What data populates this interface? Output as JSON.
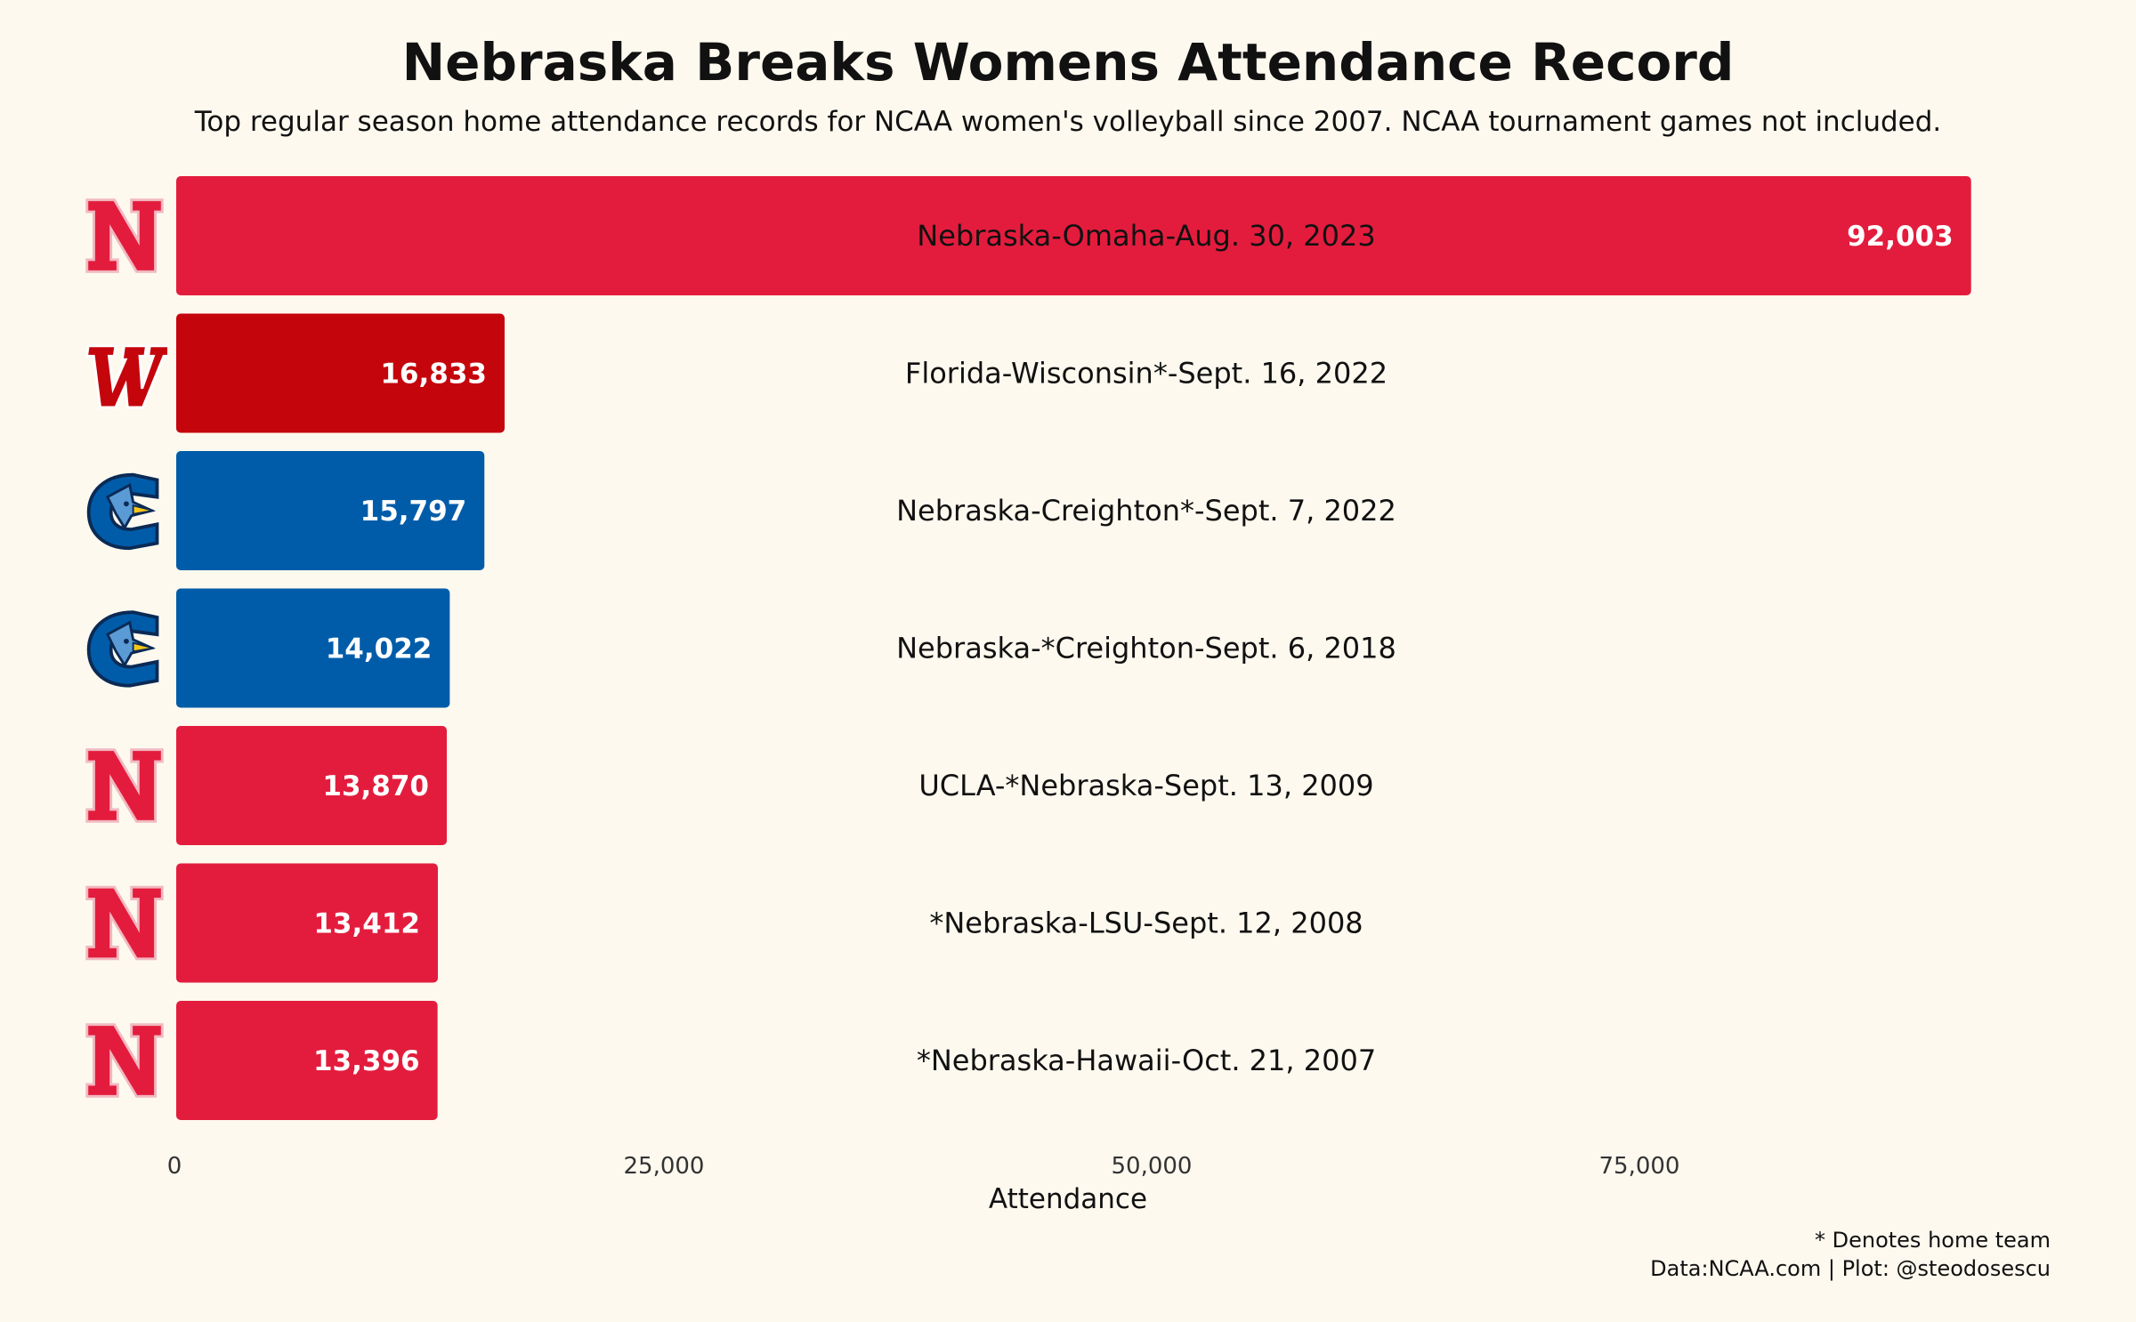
{
  "chart_data": {
    "type": "bar",
    "orientation": "horizontal",
    "title": "Nebraska Breaks Womens Attendance Record",
    "subtitle": "Top regular season home attendance records for NCAA women's volleyball since 2007. NCAA tournament games not included.",
    "xlabel": "Attendance",
    "ylabel": "",
    "xlim": [
      0,
      100000
    ],
    "x_ticks": [
      0,
      25000,
      50000,
      75000
    ],
    "x_tick_labels": [
      "0",
      "25,000",
      "50,000",
      "75,000"
    ],
    "grid": false,
    "categories": [
      "Nebraska-Omaha-Aug. 30, 2023",
      "Florida-Wisconsin*-Sept. 16, 2022",
      "Nebraska-Creighton*-Sept. 7, 2022",
      "Nebraska-*Creighton-Sept. 6, 2018",
      "UCLA-*Nebraska-Sept. 13, 2009",
      "*Nebraska-LSU-Sept. 12, 2008",
      "*Nebraska-Hawaii-Oct. 21, 2007"
    ],
    "values": [
      92003,
      16833,
      15797,
      14022,
      13870,
      13412,
      13396
    ],
    "value_labels": [
      "92,003",
      "16,833",
      "15,797",
      "14,022",
      "13,870",
      "13,412",
      "13,396"
    ],
    "bar_colors": [
      "#e31c3d",
      "#c5050c",
      "#005ca9",
      "#005ca9",
      "#e31c3d",
      "#e31c3d",
      "#e31c3d"
    ],
    "logos": [
      "nebraska-n-logo",
      "wisconsin-w-logo",
      "creighton-bluejay-logo",
      "creighton-bluejay-logo",
      "nebraska-n-logo",
      "nebraska-n-logo",
      "nebraska-n-logo"
    ]
  },
  "caption": {
    "line1": "* Denotes home team",
    "line2": "Data:NCAA.com | Plot: @steodosescu"
  },
  "colors": {
    "background": "#fdf9ef",
    "nebraska_red": "#e31c3d",
    "wisconsin_red": "#c5050c",
    "creighton_blue": "#005ca9"
  }
}
